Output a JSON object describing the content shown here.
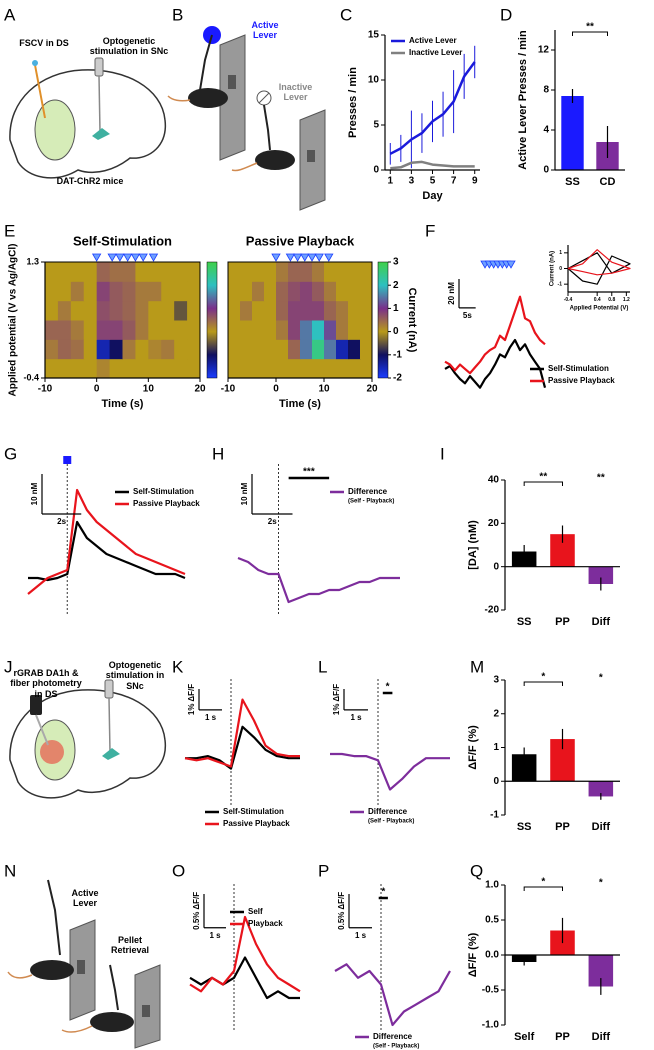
{
  "chart_data": [
    {
      "type": "line",
      "panel": "C",
      "xlabel": "Day",
      "ylabel": "Presses / min",
      "x": [
        1,
        2,
        3,
        4,
        5,
        6,
        7,
        8,
        9
      ],
      "xlim": [
        0.5,
        9.5
      ],
      "xticks": [
        1,
        3,
        5,
        7,
        9
      ],
      "ylim": [
        0,
        15
      ],
      "yticks": [
        0,
        5,
        10,
        15
      ],
      "legend": "upper left",
      "series": [
        {
          "name": "Active Lever",
          "color": "#1a1adb",
          "values": [
            1.8,
            2.4,
            3.4,
            4.1,
            5.4,
            6.2,
            7.6,
            10.4,
            12
          ],
          "errors": [
            1.2,
            1.5,
            3.2,
            2.2,
            2.3,
            2.5,
            3.5,
            2.5,
            1.8
          ]
        },
        {
          "name": "Inactive Lever",
          "color": "#808080",
          "values": [
            0.2,
            0.3,
            0.8,
            0.9,
            0.6,
            0.5,
            0.4,
            0.4,
            0.4
          ]
        }
      ]
    },
    {
      "type": "bar",
      "panel": "D",
      "ylabel": "Active Lever Presses / min",
      "categories": [
        "SS",
        "CD"
      ],
      "values": [
        7.4,
        2.8
      ],
      "errors": [
        0.7,
        1.6
      ],
      "colors": [
        "#1a1aff",
        "#7d2d9c"
      ],
      "ylim": [
        0,
        14
      ],
      "yticks": [
        0,
        4,
        8,
        12
      ],
      "annotations": [
        {
          "text": "**",
          "from": 0,
          "to": 1
        }
      ]
    },
    {
      "type": "heatmap",
      "panel": "E",
      "title": "Self-Stimulation",
      "xlabel": "Time (s)",
      "ylabel": "Applied potential (V vs Ag/AgCl)",
      "xlim": [
        -10,
        20
      ],
      "xticks": [
        -10,
        0,
        10,
        20
      ],
      "ylim": [
        -0.4,
        1.3
      ],
      "yticks": [
        -0.4,
        1.3
      ],
      "stim_times": [
        0,
        3,
        4.5,
        6,
        7.5,
        9,
        11
      ],
      "clim": [
        -2,
        3
      ],
      "colorscale": [
        "#1a3cff",
        "#101060",
        "#b89a1a",
        "#7a2f8a",
        "#2ec0c0",
        "#3fd04a"
      ],
      "matrix": [
        [
          0,
          0,
          0,
          0,
          0.2,
          0,
          0,
          0,
          0,
          0,
          0,
          0
        ],
        [
          0.3,
          0.5,
          0.4,
          0,
          -1.5,
          -1,
          0.3,
          0,
          0.2,
          0.3,
          0,
          0
        ],
        [
          0.5,
          0.5,
          0.3,
          0,
          0.8,
          0.8,
          0.6,
          0.3,
          0,
          0,
          0,
          0
        ],
        [
          0,
          0.3,
          0,
          0,
          0.7,
          0.6,
          0.5,
          0.3,
          0,
          0,
          -0.5,
          0
        ],
        [
          0,
          0,
          0.3,
          0,
          0.8,
          0.6,
          0.5,
          0.3,
          0.3,
          0,
          0,
          0
        ],
        [
          0,
          0,
          0,
          0,
          0.5,
          0.4,
          0.4,
          0,
          0,
          0,
          0,
          0
        ]
      ]
    },
    {
      "type": "heatmap",
      "title": "Passive Playback",
      "xlabel": "Time (s)",
      "xlim": [
        -10,
        20
      ],
      "xticks": [
        -10,
        0,
        10,
        20
      ],
      "ylim": [
        -0.4,
        1.3
      ],
      "stim_times": [
        0,
        3,
        4.5,
        6,
        7.5,
        9,
        11
      ],
      "clim": [
        -2,
        3
      ],
      "cticks": [
        -2,
        -1,
        0,
        1,
        2,
        3
      ],
      "colorbar_label": "Current (nA)",
      "colorscale": [
        "#1a3cff",
        "#101060",
        "#b89a1a",
        "#7a2f8a",
        "#2ec0c0",
        "#3fd04a"
      ],
      "matrix": [
        [
          0,
          0,
          0,
          0,
          0,
          0,
          0,
          0,
          0,
          0,
          0,
          0
        ],
        [
          0,
          0,
          0,
          0,
          0,
          0.5,
          1.5,
          2.5,
          1.5,
          -1.5,
          -1,
          0
        ],
        [
          0,
          0,
          0,
          0,
          0.3,
          0.8,
          1.5,
          2,
          1.2,
          0.3,
          0,
          0
        ],
        [
          0,
          0.3,
          0,
          0,
          0.5,
          0.8,
          0.8,
          0.8,
          0.5,
          0.3,
          0,
          0
        ],
        [
          0,
          0,
          0.3,
          0,
          0.5,
          0.7,
          0.8,
          0.6,
          0.3,
          0,
          0,
          0
        ],
        [
          0,
          0,
          0,
          0,
          0.3,
          0.5,
          0.5,
          0.3,
          0,
          0,
          0,
          0
        ]
      ]
    },
    {
      "type": "trace",
      "panel": "F",
      "x": [
        0,
        1.5,
        3,
        4.5,
        6,
        7.5,
        9,
        10.5,
        12,
        13.5,
        15,
        16.5,
        18,
        19.5,
        21,
        22.5,
        24,
        25.5,
        27,
        28.5,
        30
      ],
      "xlim": [
        0,
        30
      ],
      "ylim": [
        -30,
        60
      ],
      "stim_times": [
        12,
        13.3,
        14.6,
        15.9,
        17.2,
        18.5,
        19.8
      ],
      "scalebar_y": {
        "value": 20,
        "label": "20 nM"
      },
      "scalebar_x": {
        "value": 5,
        "label": "5s"
      },
      "legend": "right",
      "series": [
        {
          "name": "Self-Stimulation",
          "color": "#000000",
          "values": [
            -5,
            -3,
            -8,
            -12,
            -15,
            -10,
            -14,
            -18,
            -12,
            -8,
            -2,
            5,
            3,
            10,
            15,
            8,
            12,
            5,
            0,
            -5,
            -18
          ]
        },
        {
          "name": "Passive Playback",
          "color": "#e8141c",
          "values": [
            0,
            -2,
            -6,
            -2,
            -5,
            -8,
            -4,
            0,
            5,
            8,
            10,
            18,
            15,
            25,
            35,
            45,
            30,
            28,
            20,
            15,
            12
          ]
        }
      ]
    },
    {
      "type": "line",
      "xlabel": "Applied Potential (V)",
      "ylabel": "Current (nA)",
      "x": [
        -0.4,
        0,
        0.4,
        0.8,
        1.3,
        0.8,
        0.4,
        0,
        -0.4
      ],
      "xlim": [
        -0.4,
        1.3
      ],
      "xticks": [
        -0.4,
        0.4,
        0.8,
        1.2
      ],
      "ylim": [
        -1.5,
        1.5
      ],
      "yticks": [
        -1,
        0,
        1
      ],
      "series": [
        {
          "name": "Self-Stimulation",
          "color": "#000000",
          "values": [
            0,
            0.5,
            1,
            -0.3,
            0.3,
            0.8,
            -1,
            -0.8,
            0
          ]
        },
        {
          "name": "Passive Playback",
          "color": "#e8141c",
          "values": [
            0,
            0.3,
            1.2,
            0.4,
            0,
            -0.3,
            -0.4,
            -0.2,
            0
          ]
        }
      ]
    },
    {
      "type": "trace",
      "panel": "G",
      "x": [
        -2,
        -1.5,
        -1,
        -0.5,
        0,
        0.5,
        1,
        1.5,
        2,
        2.5,
        3,
        3.5,
        4,
        4.5,
        5,
        5.5,
        6
      ],
      "xlim": [
        -2,
        6
      ],
      "ylim": [
        -10,
        25
      ],
      "vline": 0,
      "stim_times": [
        0
      ],
      "scalebar_y": {
        "value": 10,
        "label": "10 nM"
      },
      "scalebar_x": {
        "value": 2,
        "label": "2s"
      },
      "legend": "upper right",
      "series": [
        {
          "name": "Self-Stimulation",
          "color": "#000000",
          "values": [
            -2,
            -2,
            -2.5,
            -2,
            -1,
            12,
            8,
            6,
            4,
            3,
            2,
            1,
            0,
            -1,
            -1,
            -1,
            -2
          ]
        },
        {
          "name": "Passive Playback",
          "color": "#e8141c",
          "values": [
            -6,
            -4,
            -2,
            -1,
            0,
            20,
            15,
            12,
            10,
            8,
            6,
            4,
            3,
            2,
            1,
            0,
            -1
          ]
        }
      ]
    },
    {
      "type": "trace",
      "panel": "H",
      "x": [
        -2,
        -1.5,
        -1,
        -0.5,
        0,
        0.5,
        1,
        1.5,
        2,
        2.5,
        3,
        3.5,
        4,
        4.5,
        5,
        5.5,
        6
      ],
      "xlim": [
        -2,
        6
      ],
      "ylim": [
        -10,
        25
      ],
      "vline": 0,
      "scalebar_y": {
        "value": 10,
        "label": "10 nM"
      },
      "scalebar_x": {
        "value": 2,
        "label": "2s"
      },
      "legend": "upper right",
      "sig": {
        "text": "***",
        "from": 0.5,
        "to": 2.5
      },
      "series": [
        {
          "name": "Difference",
          "note": "(Self - Playback)",
          "color": "#7d2d9c",
          "values": [
            3,
            2,
            0,
            -1,
            -1,
            -8,
            -7,
            -6,
            -6,
            -5,
            -5,
            -4,
            -3,
            -3,
            -2,
            -2,
            -2
          ]
        }
      ]
    },
    {
      "type": "bar",
      "panel": "I",
      "ylabel": "[DA] (nM)",
      "categories": [
        "SS",
        "PP",
        "Diff"
      ],
      "values": [
        7,
        15,
        -8
      ],
      "errors": [
        3,
        4,
        3
      ],
      "colors": [
        "#000000",
        "#e8141c",
        "#7d2d9c"
      ],
      "ylim": [
        -20,
        40
      ],
      "yticks": [
        -20,
        0,
        20,
        40
      ],
      "annotations": [
        {
          "text": "**",
          "from": 0,
          "to": 1
        },
        {
          "text": "**",
          "at": 2
        }
      ]
    },
    {
      "type": "trace",
      "panel": "K",
      "x": [
        -2,
        -1.5,
        -1,
        -0.5,
        0,
        0.5,
        1,
        1.5,
        2,
        2.5,
        3
      ],
      "xlim": [
        -2,
        3
      ],
      "ylim": [
        -2,
        3.5
      ],
      "vline": 0,
      "scalebar_y": {
        "value": 1,
        "label": "1% ΔF/F"
      },
      "scalebar_x": {
        "value": 1,
        "label": "1 s"
      },
      "legend": "below",
      "series": [
        {
          "name": "Self-Stimulation",
          "color": "#000000",
          "values": [
            0,
            0,
            0.1,
            -0.1,
            -0.5,
            1.5,
            1,
            0.4,
            0.1,
            0,
            0
          ]
        },
        {
          "name": "Passive Playback",
          "color": "#e8141c",
          "values": [
            0,
            -0.1,
            0,
            -0.2,
            -0.4,
            2.8,
            1.8,
            0.6,
            0.2,
            0.1,
            0.1
          ]
        }
      ]
    },
    {
      "type": "trace",
      "panel": "L",
      "x": [
        -2,
        -1.5,
        -1,
        -0.5,
        0,
        0.5,
        1,
        1.5,
        2,
        2.5,
        3
      ],
      "xlim": [
        -2,
        3
      ],
      "ylim": [
        -2,
        3.5
      ],
      "vline": 0,
      "scalebar_y": {
        "value": 1,
        "label": "1% ΔF/F"
      },
      "scalebar_x": {
        "value": 1,
        "label": "1 s"
      },
      "legend": "below",
      "sig": {
        "text": "*",
        "from": 0.2,
        "to": 0.6
      },
      "series": [
        {
          "name": "Difference",
          "note": "(Self - Playback)",
          "color": "#7d2d9c",
          "values": [
            0.2,
            0.2,
            0.1,
            0.1,
            -0.1,
            -1.5,
            -1,
            -0.4,
            0,
            0,
            0
          ]
        }
      ]
    },
    {
      "type": "bar",
      "panel": "M",
      "ylabel": "ΔF/F (%)",
      "categories": [
        "SS",
        "PP",
        "Diff"
      ],
      "values": [
        0.8,
        1.25,
        -0.45
      ],
      "errors": [
        0.2,
        0.3,
        0.1
      ],
      "colors": [
        "#000000",
        "#e8141c",
        "#7d2d9c"
      ],
      "ylim": [
        -1,
        3
      ],
      "yticks": [
        -1,
        0,
        1,
        2,
        3
      ],
      "annotations": [
        {
          "text": "*",
          "from": 0,
          "to": 1
        },
        {
          "text": "*",
          "at": 2
        }
      ]
    },
    {
      "type": "trace",
      "panel": "O",
      "x": [
        -2,
        -1.5,
        -1,
        -0.5,
        0,
        0.5,
        1,
        1.5,
        2,
        2.5,
        3
      ],
      "xlim": [
        -2,
        3
      ],
      "ylim": [
        -0.6,
        1.4
      ],
      "vline": 0,
      "scalebar_y": {
        "value": 0.5,
        "label": "0.5% ΔF/F"
      },
      "scalebar_x": {
        "value": 1,
        "label": "1 s"
      },
      "legend": "upper right",
      "series": [
        {
          "name": "Self",
          "color": "#000000",
          "values": [
            0.1,
            0,
            0.1,
            0,
            0.1,
            0.4,
            0.1,
            -0.2,
            -0.1,
            -0.2,
            -0.2
          ]
        },
        {
          "name": "Playback",
          "color": "#e8141c",
          "values": [
            0,
            -0.1,
            0.1,
            0,
            0.2,
            1,
            0.6,
            0.3,
            0.1,
            0,
            -0.1
          ]
        }
      ]
    },
    {
      "type": "trace",
      "panel": "P",
      "x": [
        -2,
        -1.5,
        -1,
        -0.5,
        0,
        0.5,
        1,
        1.5,
        2,
        2.5,
        3
      ],
      "xlim": [
        -2,
        3
      ],
      "ylim": [
        -0.6,
        1.4
      ],
      "vline": 0,
      "scalebar_y": {
        "value": 0.5,
        "label": "0.5% ΔF/F"
      },
      "scalebar_x": {
        "value": 1,
        "label": "1 s"
      },
      "legend": "below",
      "sig": {
        "text": "*",
        "from": -0.1,
        "to": 0.3
      },
      "series": [
        {
          "name": "Difference",
          "note": "(Self - Playback)",
          "color": "#7d2d9c",
          "values": [
            0.2,
            0.3,
            0.1,
            0.2,
            0,
            -0.6,
            -0.4,
            -0.3,
            -0.2,
            -0.1,
            0.2
          ]
        }
      ]
    },
    {
      "type": "bar",
      "panel": "Q",
      "ylabel": "ΔF/F (%)",
      "categories": [
        "Self",
        "PP",
        "Diff"
      ],
      "values": [
        -0.1,
        0.35,
        -0.45
      ],
      "errors": [
        0.05,
        0.18,
        0.12
      ],
      "colors": [
        "#000000",
        "#e8141c",
        "#7d2d9c"
      ],
      "ylim": [
        -1,
        1
      ],
      "yticks": [
        {
          "value": -1,
          "label": "-1.0"
        },
        -0.5,
        {
          "value": 0,
          "label": "0.0"
        },
        0.5,
        {
          "value": 1,
          "label": "1.0"
        }
      ],
      "annotations": [
        {
          "text": "*",
          "from": 0,
          "to": 1
        },
        {
          "text": "*",
          "at": 2
        }
      ]
    }
  ],
  "diagrams": [
    {
      "panel": "A",
      "labels": [
        "FSCV in DS",
        "Optogenetic stimulation in SNc",
        "DAT-ChR2 mice"
      ]
    },
    {
      "panel": "B",
      "labels": [
        "Active Lever",
        "Inactive Lever"
      ]
    },
    {
      "panel": "J",
      "labels": [
        "rGRAB DA1h & fiber photometry in DS",
        "Optogenetic stimulation in SNc"
      ]
    },
    {
      "panel": "N",
      "labels": [
        "Active Lever",
        "Pellet Retrieval"
      ]
    }
  ]
}
